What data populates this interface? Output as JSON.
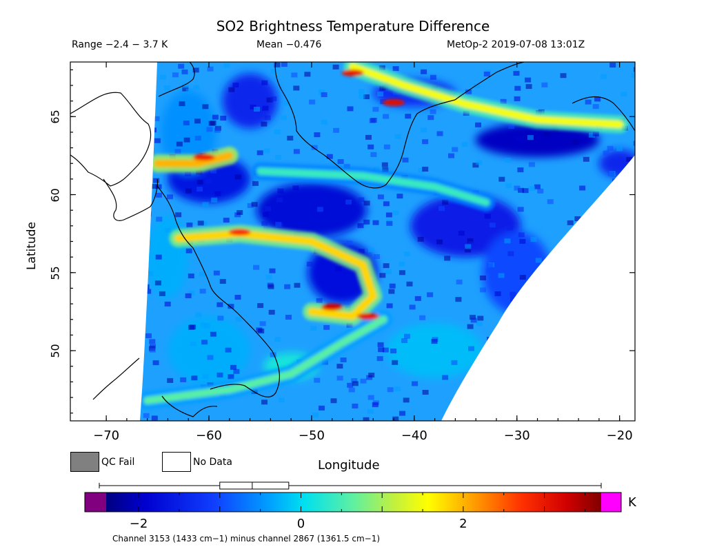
{
  "header": {
    "title": "SO2 Brightness Temperature Difference",
    "range": "Range −2.4 − 3.7 K",
    "mean": "Mean −0.476",
    "satellite_time": "MetOp-2 2019-07-08 13:01Z"
  },
  "map": {
    "lon_range": [
      -73.5,
      -18.5
    ],
    "lat_range": [
      45.5,
      68.5
    ],
    "x_ticks": [
      -70,
      -60,
      -50,
      -40,
      -30,
      -20
    ],
    "y_ticks": [
      50,
      55,
      60,
      65
    ],
    "x_tick_labels": [
      "−70",
      "−60",
      "−50",
      "−40",
      "−30",
      "−20"
    ],
    "y_tick_labels": [
      "50",
      "55",
      "60",
      "65"
    ],
    "xlabel": "Longitude",
    "ylabel": "Latitude"
  },
  "legend": {
    "qc_fail": "QC Fail",
    "no_data": "No Data",
    "qc_fail_color": "#808080"
  },
  "colorbar": {
    "unit": "K",
    "ticks": [
      -2,
      0,
      2
    ],
    "tick_labels": [
      "−2",
      "0",
      "2"
    ],
    "value_range": [
      -2.4,
      3.7
    ],
    "box_whisker": {
      "min": -2.4,
      "q1": -1.0,
      "median": -0.6,
      "q3": -0.15,
      "max": 3.7
    },
    "underflow_color": "#800080",
    "overflow_color": "#ff00ff",
    "caption": "Channel 3153 (1433 cm−1) minus channel 2867 (1361.5 cm−1)"
  },
  "chart_data": {
    "type": "heatmap",
    "title": "SO2 Brightness Temperature Difference",
    "xlabel": "Longitude",
    "ylabel": "Latitude",
    "xlim": [
      -73.5,
      -18.5
    ],
    "ylim": [
      45.5,
      68.5
    ],
    "value_range_K": [
      -2.4,
      3.7
    ],
    "mean_K": -0.476,
    "features": [
      {
        "name": "band-labrador",
        "path_lonlat": [
          [
            -63,
            57.2
          ],
          [
            -57,
            57.5
          ],
          [
            -50,
            57.0
          ],
          [
            -45,
            55.5
          ],
          [
            -44,
            53.5
          ],
          [
            -46,
            52.2
          ],
          [
            -50,
            52.5
          ]
        ],
        "value": 1.8
      },
      {
        "name": "band-greenland-south",
        "path_lonlat": [
          [
            -46,
            68.2
          ],
          [
            -41,
            67.0
          ],
          [
            -35,
            65.8
          ],
          [
            -28,
            64.8
          ],
          [
            -20,
            64.5
          ]
        ],
        "value": 1.5
      },
      {
        "name": "band-hudson",
        "path_lonlat": [
          [
            -65,
            62.0
          ],
          [
            -61,
            62.0
          ],
          [
            -58,
            62.5
          ]
        ],
        "value": 2.0
      },
      {
        "name": "band-south",
        "path_lonlat": [
          [
            -66,
            46.8
          ],
          [
            -58,
            47.5
          ],
          [
            -52,
            48.5
          ],
          [
            -47,
            50.5
          ],
          [
            -43,
            52.0
          ]
        ],
        "value": 0.6
      },
      {
        "name": "band-mid",
        "path_lonlat": [
          [
            -55,
            61.5
          ],
          [
            -45,
            61.2
          ],
          [
            -38,
            60.5
          ],
          [
            -33,
            59.5
          ]
        ],
        "value": 0.4
      }
    ]
  }
}
